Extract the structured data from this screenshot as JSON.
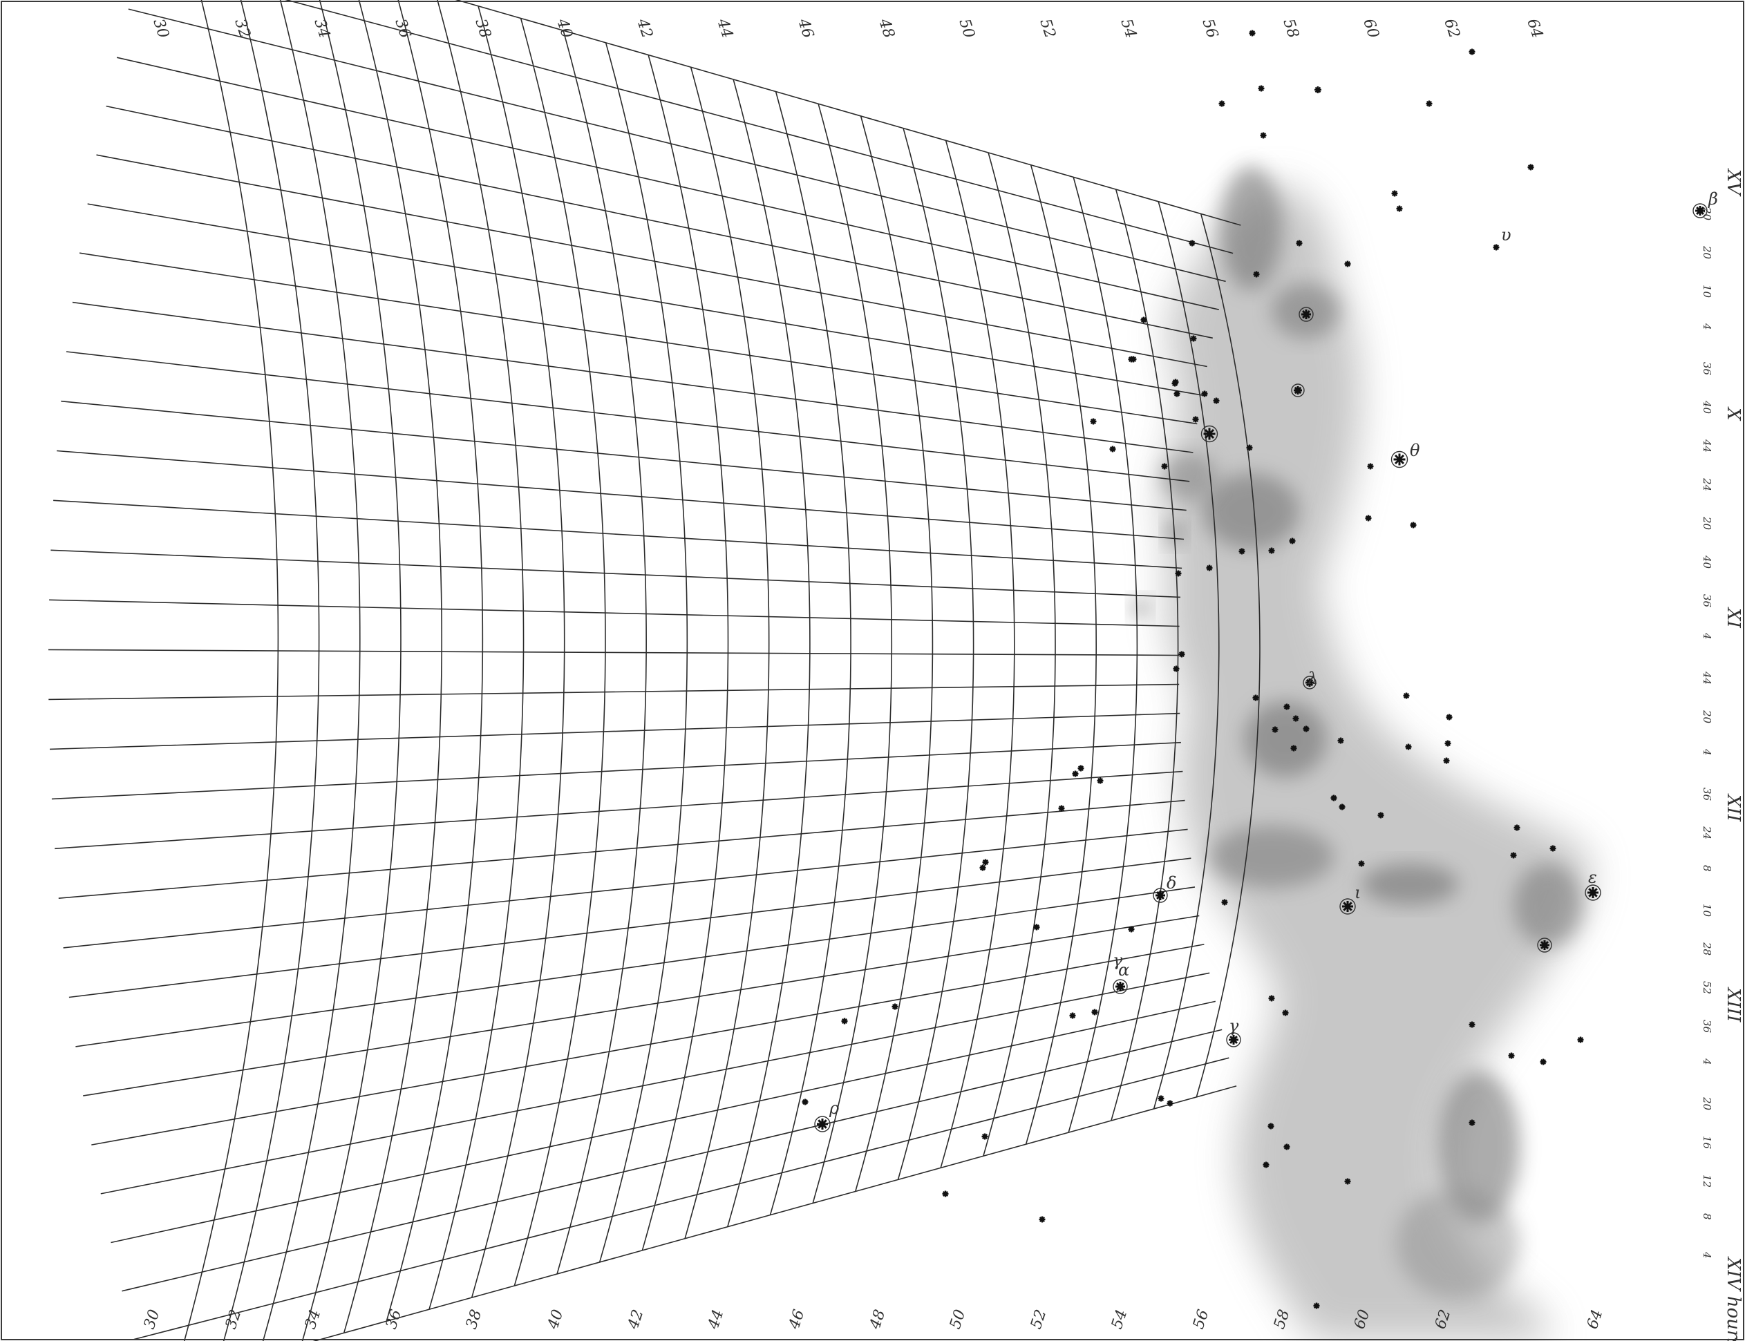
{
  "map": {
    "declination_labels": [
      "30",
      "32",
      "34",
      "36",
      "38",
      "40",
      "42",
      "44",
      "46",
      "48",
      "50",
      "52",
      "54",
      "56",
      "58",
      "60",
      "62",
      "64"
    ],
    "hour_labels": [
      "XV",
      "X",
      "XI",
      "XII",
      "XIII",
      "XIV hours"
    ],
    "minute_labels": [
      "20",
      "20",
      "10",
      "4",
      "36",
      "40",
      "44",
      "24",
      "20",
      "40",
      "36",
      "4",
      "44",
      "20",
      "4",
      "36",
      "24",
      "8",
      "10",
      "28",
      "52",
      "36",
      "4",
      "20",
      "16",
      "12",
      "8",
      "4"
    ],
    "star_labels": [
      "β",
      "υ",
      "θ",
      "λ",
      "δ",
      "ι",
      "ε",
      "α",
      "γ",
      "ρ",
      "γ"
    ],
    "colors": {
      "background": "#ffffff",
      "grid": "#2b2b2b",
      "star": "#111111",
      "nebulosity": "#7a7a7a"
    }
  }
}
